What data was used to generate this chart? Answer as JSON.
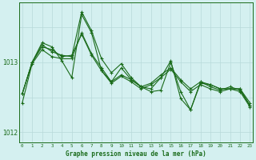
{
  "title": "Graphe pression niveau de la mer (hPa)",
  "background_color": "#d4f0f0",
  "grid_color": "#b8dada",
  "line_color": "#1a6b1a",
  "hours": [
    0,
    1,
    2,
    3,
    4,
    5,
    6,
    7,
    8,
    9,
    10,
    11,
    12,
    13,
    14,
    15,
    16,
    17,
    18,
    19,
    20,
    21,
    22,
    23
  ],
  "line1": [
    1012.55,
    1013.0,
    1013.25,
    1013.15,
    1013.1,
    1013.08,
    1013.72,
    1013.45,
    1013.05,
    1012.85,
    1012.98,
    1012.78,
    1012.65,
    1012.62,
    1012.78,
    1013.02,
    1012.48,
    1012.32,
    1012.72,
    1012.68,
    1012.62,
    1012.62,
    1012.62,
    1012.42
  ],
  "line2": [
    1012.42,
    1012.98,
    1013.18,
    1013.08,
    1013.05,
    1013.05,
    1013.42,
    1013.12,
    1012.92,
    1012.72,
    1012.82,
    1012.75,
    1012.65,
    1012.7,
    1012.82,
    1012.92,
    1012.75,
    1012.62,
    1012.72,
    1012.65,
    1012.6,
    1012.65,
    1012.6,
    1012.38
  ],
  "line3": [
    1012.55,
    1013.0,
    1013.28,
    1013.22,
    1013.02,
    1012.78,
    1013.68,
    1013.42,
    1012.88,
    1012.72,
    1012.92,
    1012.75,
    1012.65,
    1012.58,
    1012.6,
    1013.0,
    1012.58,
    1012.32,
    1012.7,
    1012.68,
    1012.62,
    1012.62,
    1012.62,
    1012.38
  ],
  "line4": [
    1012.55,
    1013.0,
    1013.22,
    1013.18,
    1013.08,
    1013.1,
    1013.4,
    1013.1,
    1012.88,
    1012.7,
    1012.8,
    1012.72,
    1012.62,
    1012.68,
    1012.78,
    1012.9,
    1012.72,
    1012.58,
    1012.68,
    1012.62,
    1012.58,
    1012.62,
    1012.58,
    1012.36
  ],
  "ylim": [
    1011.85,
    1013.85
  ],
  "ytick_vals": [
    1012.0,
    1013.0
  ],
  "ytick_labels": [
    "1012",
    "1013"
  ],
  "xlim": [
    -0.3,
    23.3
  ]
}
